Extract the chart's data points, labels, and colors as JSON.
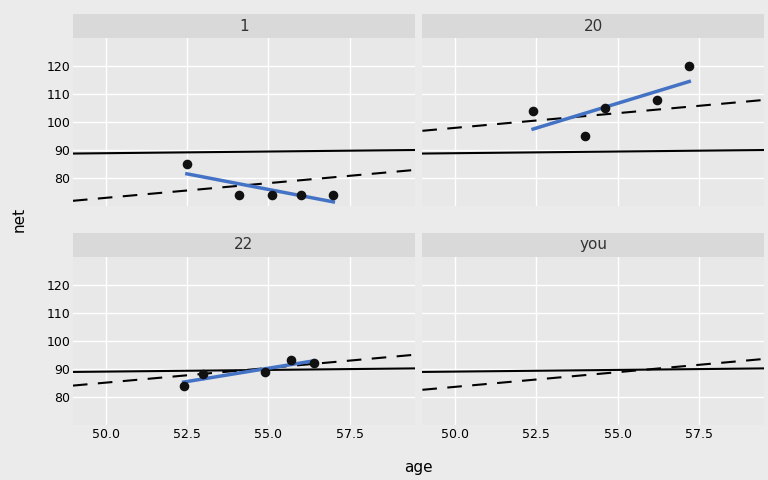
{
  "panels": [
    "1",
    "20",
    "22",
    "you"
  ],
  "xlim": [
    49.0,
    59.5
  ],
  "ylim": [
    70,
    130
  ],
  "yticks": [
    80,
    90,
    100,
    110,
    120
  ],
  "xticks": [
    50.0,
    52.5,
    55.0,
    57.5
  ],
  "xlabel": "age",
  "ylabel": "net",
  "fig_bg": "#ebebeb",
  "panel_bg": "#e8e8e8",
  "strip_bg": "#d9d9d9",
  "grid_color": "#ffffff",
  "scatter_color": "#111111",
  "blue_color": "#4472c4",
  "black_line_color": "#000000",
  "dashed_line_color": "#000000",
  "points": {
    "1": {
      "x": [
        52.5,
        54.1,
        55.1,
        56.0,
        57.0
      ],
      "y": [
        85,
        74,
        74,
        74,
        74
      ]
    },
    "20": {
      "x": [
        52.4,
        54.0,
        54.6,
        56.2,
        57.2
      ],
      "y": [
        104,
        95,
        105,
        108,
        120
      ]
    },
    "22": {
      "x": [
        52.4,
        53.0,
        54.9,
        55.7,
        56.4
      ],
      "y": [
        84,
        88,
        89,
        93,
        92
      ]
    }
  },
  "black_line": {
    "slope": 0.12,
    "intercept": 83.0
  },
  "dashed_lines": {
    "1": {
      "slope": 1.05,
      "x0": 49.0,
      "y0": 72.0
    },
    "20": {
      "slope": 1.05,
      "x0": 49.0,
      "y0": 97.0
    },
    "22": {
      "slope": 1.05,
      "x0": 49.0,
      "y0": 84.0
    },
    "you": {
      "slope": 1.05,
      "x0": 49.0,
      "y0": 82.5
    }
  }
}
